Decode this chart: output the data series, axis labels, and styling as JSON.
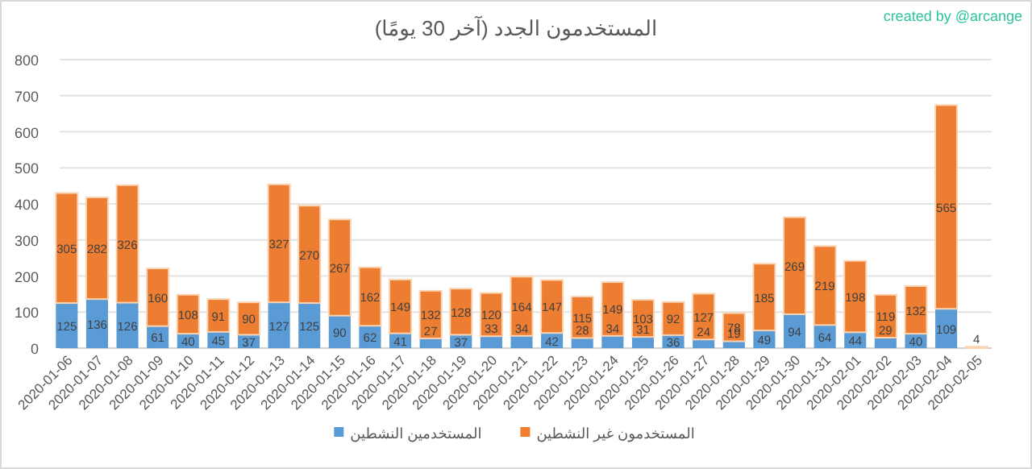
{
  "chart_data": {
    "type": "bar",
    "title": "المستخدمون الجدد (آخر 30 يومًا)",
    "stacked": true,
    "categories": [
      "2020-01-06",
      "2020-01-07",
      "2020-01-08",
      "2020-01-09",
      "2020-01-10",
      "2020-01-11",
      "2020-01-12",
      "2020-01-13",
      "2020-01-14",
      "2020-01-15",
      "2020-01-16",
      "2020-01-17",
      "2020-01-18",
      "2020-01-19",
      "2020-01-20",
      "2020-01-21",
      "2020-01-22",
      "2020-01-23",
      "2020-01-24",
      "2020-01-25",
      "2020-01-26",
      "2020-01-27",
      "2020-01-28",
      "2020-01-29",
      "2020-01-30",
      "2020-01-31",
      "2020-02-01",
      "2020-02-02",
      "2020-02-03",
      "2020-02-04",
      "2020-02-05"
    ],
    "series": [
      {
        "name": "المستخدمين النشطين",
        "color": "#5b9bd5",
        "values": [
          125,
          136,
          126,
          61,
          40,
          45,
          37,
          127,
          125,
          90,
          62,
          41,
          27,
          37,
          33,
          34,
          42,
          28,
          34,
          31,
          36,
          24,
          19,
          49,
          94,
          64,
          44,
          29,
          40,
          109,
          0
        ],
        "value_labels": [
          "125",
          "136",
          "126",
          "61",
          "40",
          "45",
          "37",
          "127",
          "125",
          "90",
          "62",
          "41",
          "27",
          "37",
          "33",
          "34",
          "42",
          "28",
          "34",
          "31",
          "36",
          "24",
          "19",
          "49",
          "94",
          "64",
          "44",
          "29",
          "40",
          "109",
          null
        ]
      },
      {
        "name": "المستخدمون غير النشطين",
        "color": "#ed7d31",
        "values": [
          305,
          282,
          326,
          160,
          108,
          91,
          90,
          327,
          270,
          267,
          162,
          149,
          132,
          128,
          120,
          164,
          147,
          115,
          149,
          103,
          92,
          127,
          78,
          185,
          269,
          219,
          198,
          119,
          132,
          565,
          4
        ],
        "value_labels": [
          "305",
          "282",
          "326",
          "160",
          "108",
          "91",
          "90",
          "327",
          "270",
          "267",
          "162",
          "149",
          "132",
          "128",
          "120",
          "164",
          "147",
          "115",
          "149",
          "103",
          "92",
          "127",
          "78",
          "185",
          "269",
          "219",
          "198",
          "119",
          "132",
          "565",
          "4"
        ]
      }
    ],
    "ylim": [
      0,
      800
    ],
    "yticks": [
      0,
      100,
      200,
      300,
      400,
      500,
      600,
      700,
      800
    ],
    "grid": "y",
    "legend": "bottom",
    "annotations": [
      "created by @arcange"
    ]
  }
}
